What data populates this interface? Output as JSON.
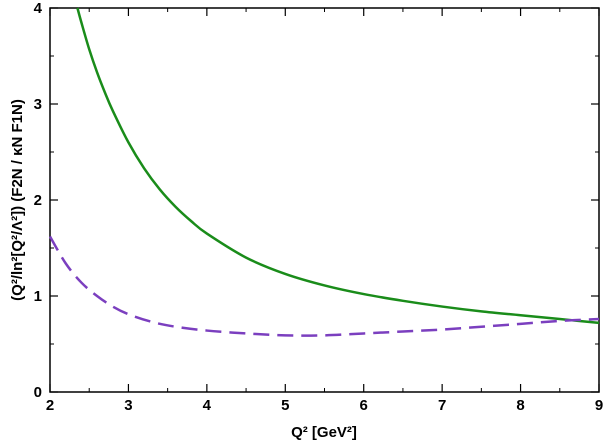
{
  "chart_data": {
    "type": "line",
    "xlabel": "Q² [GeV²]",
    "ylabel": "(Q²/ln²[Q²/Λ²]) (F2N / κN F1N)",
    "xlim": [
      2,
      9
    ],
    "ylim": [
      0,
      4
    ],
    "x_ticks": [
      "2",
      "3",
      "4",
      "5",
      "6",
      "7",
      "8",
      "9"
    ],
    "y_ticks": [
      "0",
      "1",
      "2",
      "3",
      "4"
    ],
    "grid": false,
    "series": [
      {
        "style": "solid",
        "color": "#1a8c1a",
        "x": [
          2.35,
          2.4,
          2.5,
          2.6,
          2.7,
          2.8,
          3.0,
          3.2,
          3.4,
          3.6,
          3.8,
          4.0,
          4.5,
          5.0,
          5.5,
          6.0,
          6.5,
          7.0,
          7.5,
          8.0,
          8.5,
          9.0
        ],
        "y": [
          4.0,
          3.85,
          3.57,
          3.33,
          3.12,
          2.93,
          2.6,
          2.33,
          2.11,
          1.93,
          1.78,
          1.65,
          1.4,
          1.23,
          1.11,
          1.02,
          0.95,
          0.89,
          0.84,
          0.8,
          0.76,
          0.72
        ]
      },
      {
        "style": "dashed",
        "color": "#7b3fbf",
        "x": [
          2.0,
          2.2,
          2.4,
          2.6,
          2.8,
          3.0,
          3.3,
          3.6,
          4.0,
          4.5,
          5.0,
          5.5,
          6.0,
          6.5,
          7.0,
          7.5,
          8.0,
          8.5,
          9.0
        ],
        "y": [
          1.62,
          1.34,
          1.14,
          1.0,
          0.89,
          0.81,
          0.73,
          0.68,
          0.64,
          0.61,
          0.59,
          0.59,
          0.61,
          0.63,
          0.65,
          0.68,
          0.71,
          0.74,
          0.76
        ]
      }
    ]
  }
}
